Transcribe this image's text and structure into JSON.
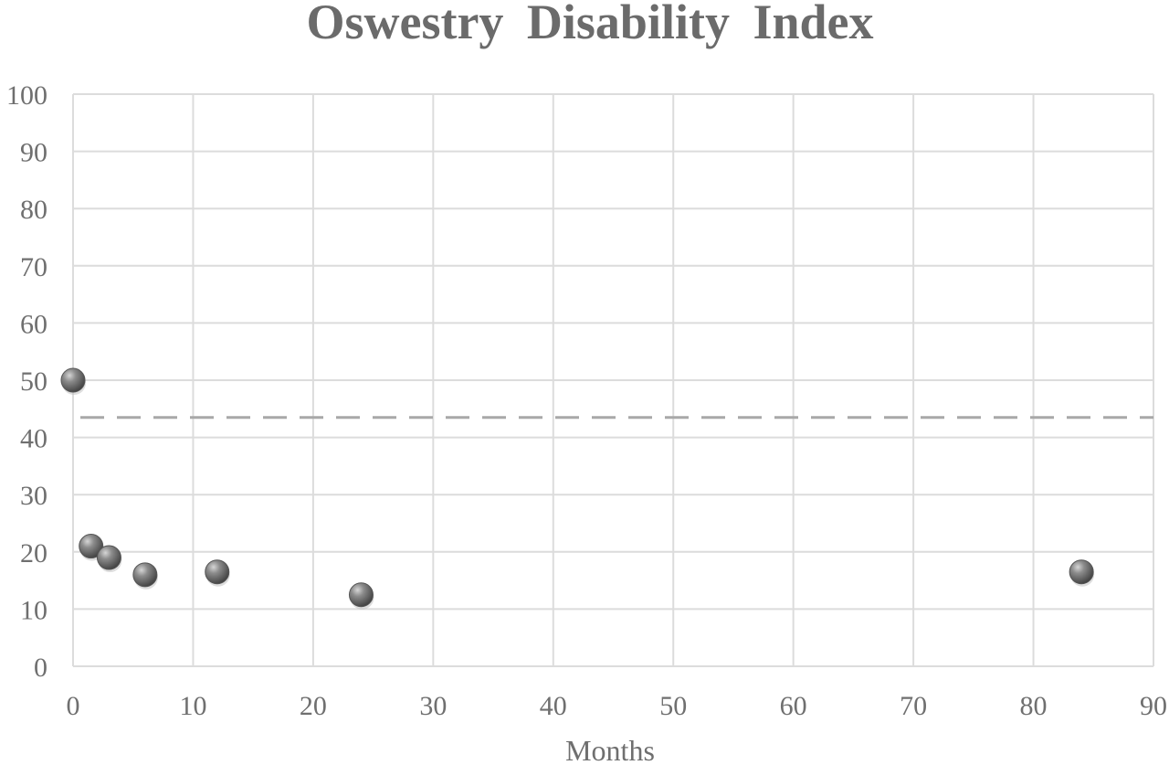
{
  "chart_data": {
    "type": "scatter",
    "title": "Oswestry Disability Index",
    "xlabel": "Months",
    "ylabel": "",
    "xlim": [
      0,
      90
    ],
    "ylim": [
      0,
      100
    ],
    "xticks": [
      "0",
      "10",
      "20",
      "30",
      "40",
      "50",
      "60",
      "70",
      "80",
      "90"
    ],
    "yticks": [
      "0",
      "10",
      "20",
      "30",
      "40",
      "50",
      "60",
      "70",
      "80",
      "90",
      "100"
    ],
    "grid": true,
    "legend": "none",
    "series": [
      {
        "points": [
          {
            "x": 0,
            "y": 50
          },
          {
            "x": 1.5,
            "y": 21
          },
          {
            "x": 3,
            "y": 19
          },
          {
            "x": 6,
            "y": 16
          },
          {
            "x": 12,
            "y": 16.5
          },
          {
            "x": 24,
            "y": 12.5
          },
          {
            "x": 84,
            "y": 16.5
          }
        ],
        "color": "#6e6e6e"
      }
    ],
    "reference_line": {
      "y": 43.5,
      "style": "dashed",
      "color": "#a8a8a8"
    }
  }
}
